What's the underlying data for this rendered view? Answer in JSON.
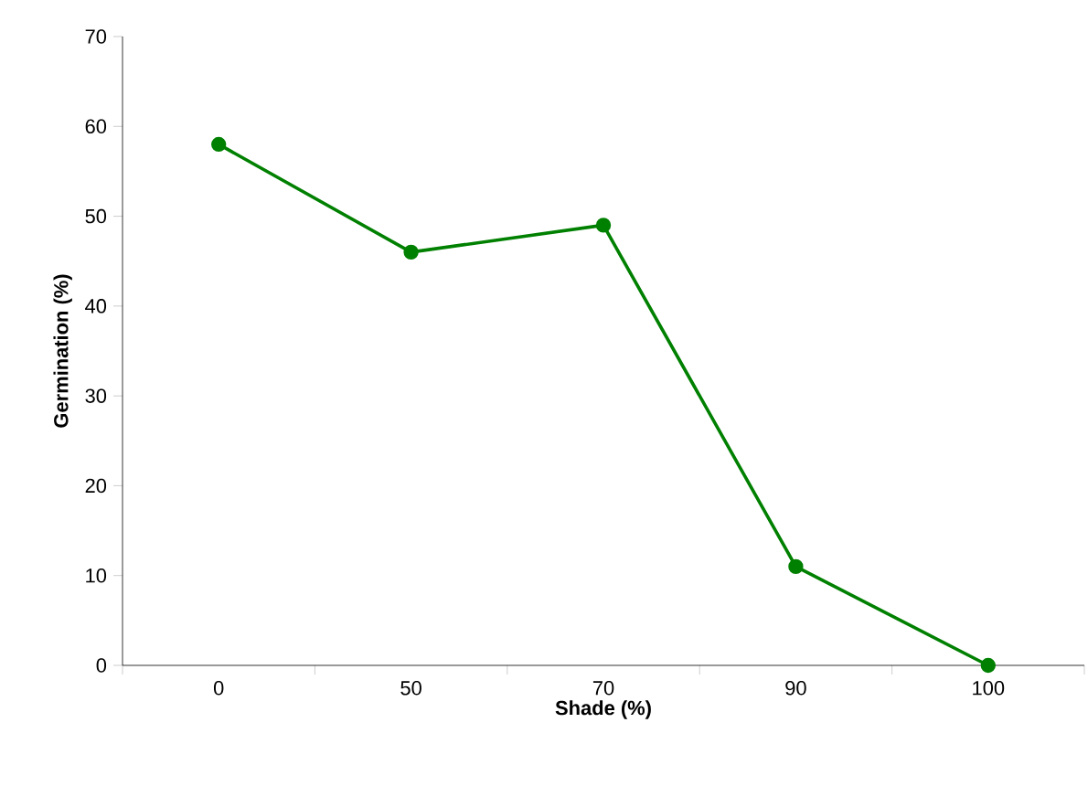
{
  "chart_data": {
    "type": "line",
    "xlabel": "Shade (%)",
    "ylabel": "Germination (%)",
    "categories": [
      "0",
      "50",
      "70",
      "90",
      "100"
    ],
    "values": [
      58,
      46,
      49,
      11,
      0
    ],
    "color": "#008000",
    "marker": "circle",
    "ylim": [
      0,
      70
    ],
    "yticks": [
      0,
      10,
      20,
      30,
      40,
      50,
      60,
      70
    ]
  }
}
